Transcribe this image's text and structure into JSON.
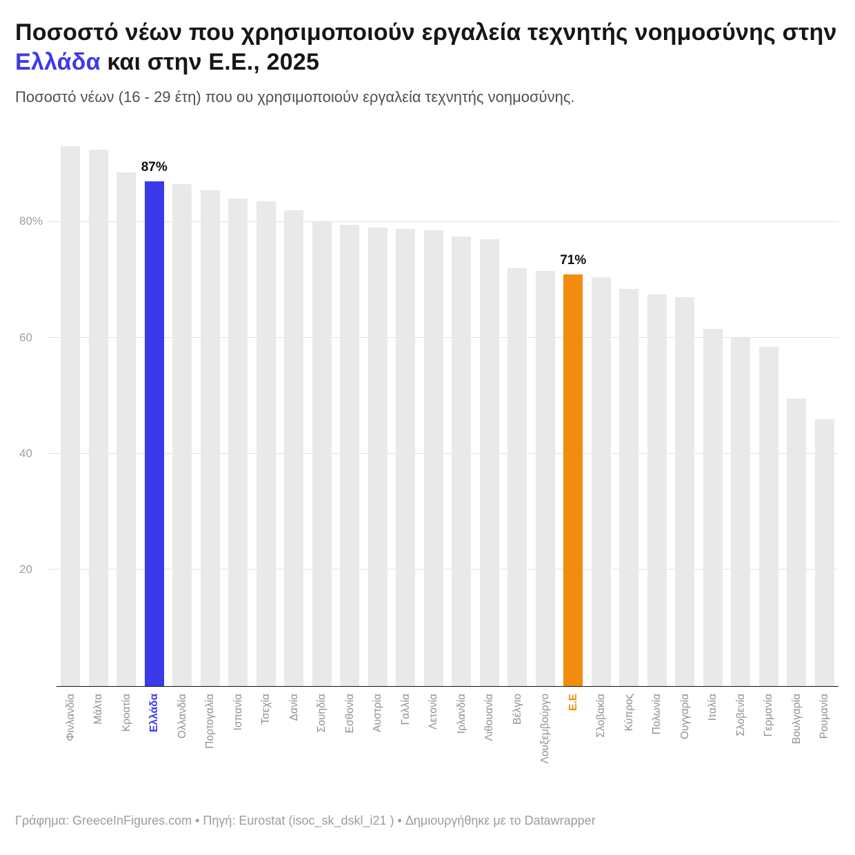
{
  "title": {
    "part1": "Ποσοστό νέων που χρησιμοποιούν εργαλεία τεχνητής νοημοσύνης στην ",
    "highlight": "Ελλάδα",
    "part2": " και στην Ε.Ε., 2025"
  },
  "subtitle": "Ποσοστό νέων (16 - 29 έτη) που ου χρησιμοποιούν εργαλεία τεχνητής νοημοσύνης.",
  "footer": "Γράφημα: GreeceInFigures.com • Πηγή: Eurostat (isoc_sk_dskl_i21 ) • Δημιουργήθηκε με το Datawrapper",
  "colors": {
    "bar_default": "#e9e9e9",
    "greece": "#3a3aeb",
    "eu": "#f28c0d",
    "title_highlight": "#3a3aeb"
  },
  "chart_data": {
    "type": "bar",
    "title": "Ποσοστό νέων που χρησιμοποιούν εργαλεία τεχνητής νοημοσύνης στην Ελλάδα και στην Ε.Ε., 2025",
    "subtitle": "Ποσοστό νέων (16 - 29 έτη) που ου χρησιμοποιούν εργαλεία τεχνητής νοημοσύνης.",
    "xlabel": "",
    "ylabel": "",
    "grid": true,
    "ylim": [
      0,
      95
    ],
    "yticks": [
      20,
      40,
      60,
      80
    ],
    "ytick_labels": [
      "20",
      "40",
      "60",
      "80%"
    ],
    "categories": [
      "Φινλανδία",
      "Μάλτα",
      "Κροατία",
      "Ελλάδα",
      "Ολλανδία",
      "Πορτογαλία",
      "Ισπανία",
      "Τσεχία",
      "Δανία",
      "Σουηδία",
      "Εσθονία",
      "Αυστρία",
      "Γαλλία",
      "Λετονία",
      "Ιρλανδία",
      "Λιθουανία",
      "Βέλγιο",
      "Λουξεμβούργο",
      "Ε.Ε",
      "Σλοβακία",
      "Κύπρος",
      "Πολωνία",
      "Ουγγαρία",
      "Ιταλία",
      "Σλοβενία",
      "Γερμανία",
      "Βουλγαρία",
      "Ρουμανία"
    ],
    "values": [
      93,
      92.5,
      88.5,
      87,
      86.5,
      85.5,
      84,
      83.5,
      82,
      80,
      79.5,
      79,
      78.8,
      78.6,
      77.5,
      77,
      72,
      71.5,
      71,
      70.5,
      68.5,
      67.5,
      67,
      61.5,
      60,
      58.5,
      49.5,
      46
    ],
    "highlights": [
      {
        "index": 3,
        "category": "Ελλάδα",
        "color_key": "greece",
        "label": "87%"
      },
      {
        "index": 18,
        "category": "Ε.Ε",
        "color_key": "eu",
        "label": "71%"
      }
    ]
  }
}
